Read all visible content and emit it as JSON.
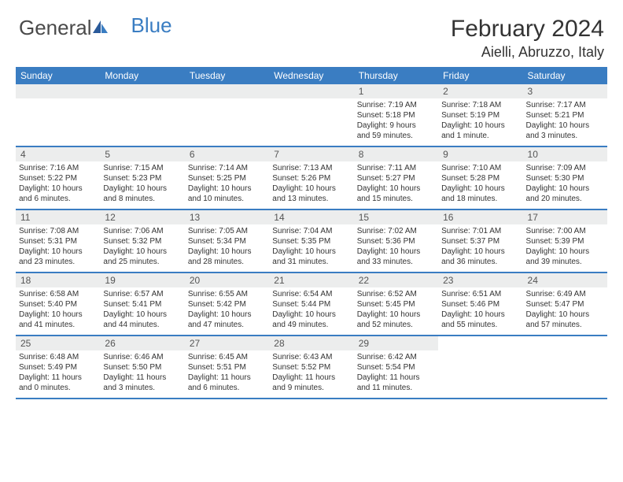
{
  "logo": {
    "part1": "General",
    "part2": "Blue"
  },
  "title": "February 2024",
  "location": "Aielli, Abruzzo, Italy",
  "header_bg": "#3a7dc2",
  "daynum_bg": "#eceded",
  "day_names": [
    "Sunday",
    "Monday",
    "Tuesday",
    "Wednesday",
    "Thursday",
    "Friday",
    "Saturday"
  ],
  "weeks": [
    [
      {
        "n": "",
        "empty": true
      },
      {
        "n": "",
        "empty": true
      },
      {
        "n": "",
        "empty": true
      },
      {
        "n": "",
        "empty": true
      },
      {
        "n": "1",
        "sunrise": "Sunrise: 7:19 AM",
        "sunset": "Sunset: 5:18 PM",
        "daylight1": "Daylight: 9 hours",
        "daylight2": "and 59 minutes."
      },
      {
        "n": "2",
        "sunrise": "Sunrise: 7:18 AM",
        "sunset": "Sunset: 5:19 PM",
        "daylight1": "Daylight: 10 hours",
        "daylight2": "and 1 minute."
      },
      {
        "n": "3",
        "sunrise": "Sunrise: 7:17 AM",
        "sunset": "Sunset: 5:21 PM",
        "daylight1": "Daylight: 10 hours",
        "daylight2": "and 3 minutes."
      }
    ],
    [
      {
        "n": "4",
        "sunrise": "Sunrise: 7:16 AM",
        "sunset": "Sunset: 5:22 PM",
        "daylight1": "Daylight: 10 hours",
        "daylight2": "and 6 minutes."
      },
      {
        "n": "5",
        "sunrise": "Sunrise: 7:15 AM",
        "sunset": "Sunset: 5:23 PM",
        "daylight1": "Daylight: 10 hours",
        "daylight2": "and 8 minutes."
      },
      {
        "n": "6",
        "sunrise": "Sunrise: 7:14 AM",
        "sunset": "Sunset: 5:25 PM",
        "daylight1": "Daylight: 10 hours",
        "daylight2": "and 10 minutes."
      },
      {
        "n": "7",
        "sunrise": "Sunrise: 7:13 AM",
        "sunset": "Sunset: 5:26 PM",
        "daylight1": "Daylight: 10 hours",
        "daylight2": "and 13 minutes."
      },
      {
        "n": "8",
        "sunrise": "Sunrise: 7:11 AM",
        "sunset": "Sunset: 5:27 PM",
        "daylight1": "Daylight: 10 hours",
        "daylight2": "and 15 minutes."
      },
      {
        "n": "9",
        "sunrise": "Sunrise: 7:10 AM",
        "sunset": "Sunset: 5:28 PM",
        "daylight1": "Daylight: 10 hours",
        "daylight2": "and 18 minutes."
      },
      {
        "n": "10",
        "sunrise": "Sunrise: 7:09 AM",
        "sunset": "Sunset: 5:30 PM",
        "daylight1": "Daylight: 10 hours",
        "daylight2": "and 20 minutes."
      }
    ],
    [
      {
        "n": "11",
        "sunrise": "Sunrise: 7:08 AM",
        "sunset": "Sunset: 5:31 PM",
        "daylight1": "Daylight: 10 hours",
        "daylight2": "and 23 minutes."
      },
      {
        "n": "12",
        "sunrise": "Sunrise: 7:06 AM",
        "sunset": "Sunset: 5:32 PM",
        "daylight1": "Daylight: 10 hours",
        "daylight2": "and 25 minutes."
      },
      {
        "n": "13",
        "sunrise": "Sunrise: 7:05 AM",
        "sunset": "Sunset: 5:34 PM",
        "daylight1": "Daylight: 10 hours",
        "daylight2": "and 28 minutes."
      },
      {
        "n": "14",
        "sunrise": "Sunrise: 7:04 AM",
        "sunset": "Sunset: 5:35 PM",
        "daylight1": "Daylight: 10 hours",
        "daylight2": "and 31 minutes."
      },
      {
        "n": "15",
        "sunrise": "Sunrise: 7:02 AM",
        "sunset": "Sunset: 5:36 PM",
        "daylight1": "Daylight: 10 hours",
        "daylight2": "and 33 minutes."
      },
      {
        "n": "16",
        "sunrise": "Sunrise: 7:01 AM",
        "sunset": "Sunset: 5:37 PM",
        "daylight1": "Daylight: 10 hours",
        "daylight2": "and 36 minutes."
      },
      {
        "n": "17",
        "sunrise": "Sunrise: 7:00 AM",
        "sunset": "Sunset: 5:39 PM",
        "daylight1": "Daylight: 10 hours",
        "daylight2": "and 39 minutes."
      }
    ],
    [
      {
        "n": "18",
        "sunrise": "Sunrise: 6:58 AM",
        "sunset": "Sunset: 5:40 PM",
        "daylight1": "Daylight: 10 hours",
        "daylight2": "and 41 minutes."
      },
      {
        "n": "19",
        "sunrise": "Sunrise: 6:57 AM",
        "sunset": "Sunset: 5:41 PM",
        "daylight1": "Daylight: 10 hours",
        "daylight2": "and 44 minutes."
      },
      {
        "n": "20",
        "sunrise": "Sunrise: 6:55 AM",
        "sunset": "Sunset: 5:42 PM",
        "daylight1": "Daylight: 10 hours",
        "daylight2": "and 47 minutes."
      },
      {
        "n": "21",
        "sunrise": "Sunrise: 6:54 AM",
        "sunset": "Sunset: 5:44 PM",
        "daylight1": "Daylight: 10 hours",
        "daylight2": "and 49 minutes."
      },
      {
        "n": "22",
        "sunrise": "Sunrise: 6:52 AM",
        "sunset": "Sunset: 5:45 PM",
        "daylight1": "Daylight: 10 hours",
        "daylight2": "and 52 minutes."
      },
      {
        "n": "23",
        "sunrise": "Sunrise: 6:51 AM",
        "sunset": "Sunset: 5:46 PM",
        "daylight1": "Daylight: 10 hours",
        "daylight2": "and 55 minutes."
      },
      {
        "n": "24",
        "sunrise": "Sunrise: 6:49 AM",
        "sunset": "Sunset: 5:47 PM",
        "daylight1": "Daylight: 10 hours",
        "daylight2": "and 57 minutes."
      }
    ],
    [
      {
        "n": "25",
        "sunrise": "Sunrise: 6:48 AM",
        "sunset": "Sunset: 5:49 PM",
        "daylight1": "Daylight: 11 hours",
        "daylight2": "and 0 minutes."
      },
      {
        "n": "26",
        "sunrise": "Sunrise: 6:46 AM",
        "sunset": "Sunset: 5:50 PM",
        "daylight1": "Daylight: 11 hours",
        "daylight2": "and 3 minutes."
      },
      {
        "n": "27",
        "sunrise": "Sunrise: 6:45 AM",
        "sunset": "Sunset: 5:51 PM",
        "daylight1": "Daylight: 11 hours",
        "daylight2": "and 6 minutes."
      },
      {
        "n": "28",
        "sunrise": "Sunrise: 6:43 AM",
        "sunset": "Sunset: 5:52 PM",
        "daylight1": "Daylight: 11 hours",
        "daylight2": "and 9 minutes."
      },
      {
        "n": "29",
        "sunrise": "Sunrise: 6:42 AM",
        "sunset": "Sunset: 5:54 PM",
        "daylight1": "Daylight: 11 hours",
        "daylight2": "and 11 minutes."
      },
      {
        "n": "",
        "empty": true,
        "noborder": true
      },
      {
        "n": "",
        "empty": true,
        "noborder": true
      }
    ]
  ]
}
